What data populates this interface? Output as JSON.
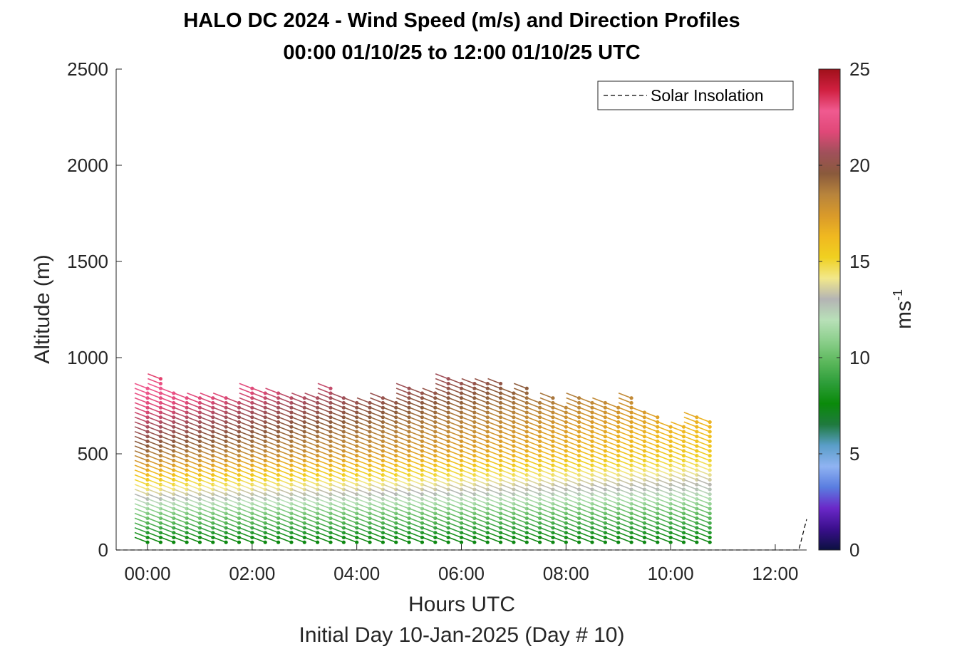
{
  "chart_data": {
    "type": "scatter",
    "title": "HALO DC 2024 - Wind Speed (m/s) and Direction Profiles",
    "subtitle": "00:00 01/10/25 to 12:00 01/10/25  UTC",
    "xlabel": "Hours UTC",
    "xlabel2": "Initial Day 10-Jan-2025 (Day # 10)",
    "ylabel": "Altitude (m)",
    "xlim": [
      -0.6,
      12.6
    ],
    "ylim": [
      0,
      2500
    ],
    "x_ticks": [
      0,
      2,
      4,
      6,
      8,
      10,
      12
    ],
    "x_tick_labels": [
      "00:00",
      "02:00",
      "04:00",
      "06:00",
      "08:00",
      "10:00",
      "12:00"
    ],
    "y_ticks": [
      0,
      500,
      1000,
      1500,
      2000,
      2500
    ],
    "y_tick_labels": [
      "0",
      "500",
      "1000",
      "1500",
      "2000",
      "2500"
    ],
    "colorbar": {
      "label": "ms",
      "label_superscript": "-1",
      "range": [
        0,
        25
      ],
      "ticks": [
        0,
        5,
        10,
        15,
        20,
        25
      ],
      "tick_labels": [
        "0",
        "5",
        "10",
        "15",
        "20",
        "25"
      ],
      "colors": [
        "#0b1040",
        "#3a0f8c",
        "#6a28c8",
        "#5a7de0",
        "#8fb3f2",
        "#5a9ec8",
        "#1f7a3e",
        "#0a8a0a",
        "#2e9e3a",
        "#5cb85c",
        "#8ccf8c",
        "#b8e0b8",
        "#b4b4b4",
        "#f2e88a",
        "#f0d020",
        "#f0b820",
        "#d99a2a",
        "#b8843c",
        "#8a5a3c",
        "#a0505a",
        "#e04878",
        "#f05a90",
        "#d02040",
        "#a0101a"
      ]
    },
    "legend": {
      "entries": [
        "Solar Insolation"
      ],
      "position": "top-right"
    },
    "profiles": {
      "times_hours": [
        0.0,
        0.25,
        0.5,
        0.75,
        1.0,
        1.25,
        1.5,
        1.75,
        2.0,
        2.25,
        2.5,
        2.75,
        3.0,
        3.25,
        3.5,
        3.75,
        4.0,
        4.25,
        4.5,
        4.75,
        5.0,
        5.25,
        5.5,
        5.75,
        6.0,
        6.25,
        6.5,
        6.75,
        7.0,
        7.25,
        7.5,
        7.75,
        8.0,
        8.25,
        8.5,
        8.75,
        9.0,
        9.25,
        9.5,
        9.75,
        10.0,
        10.25,
        10.5,
        10.75
      ],
      "max_altitude_m": [
        860,
        900,
        820,
        790,
        790,
        800,
        790,
        780,
        860,
        820,
        820,
        800,
        810,
        800,
        860,
        800,
        780,
        770,
        800,
        780,
        840,
        820,
        830,
        900,
        880,
        880,
        880,
        880,
        830,
        840,
        780,
        800,
        760,
        790,
        780,
        780,
        760,
        800,
        720,
        700,
        660,
        640,
        690,
        680
      ],
      "min_altitude_m": 40,
      "altitude_step_m": 25,
      "speed_profile_altitudes_m": [
        40,
        100,
        200,
        300,
        400,
        500,
        600,
        700,
        800,
        900
      ],
      "speed_profile_ms": [
        7.5,
        9,
        11,
        14,
        16.5,
        19,
        20.5,
        21.5,
        22.5,
        23.5
      ],
      "direction_from_deg": 305
    },
    "solar_insolation": {
      "x": [
        -0.6,
        12.45,
        12.6
      ],
      "y": [
        0,
        0,
        160
      ]
    }
  }
}
